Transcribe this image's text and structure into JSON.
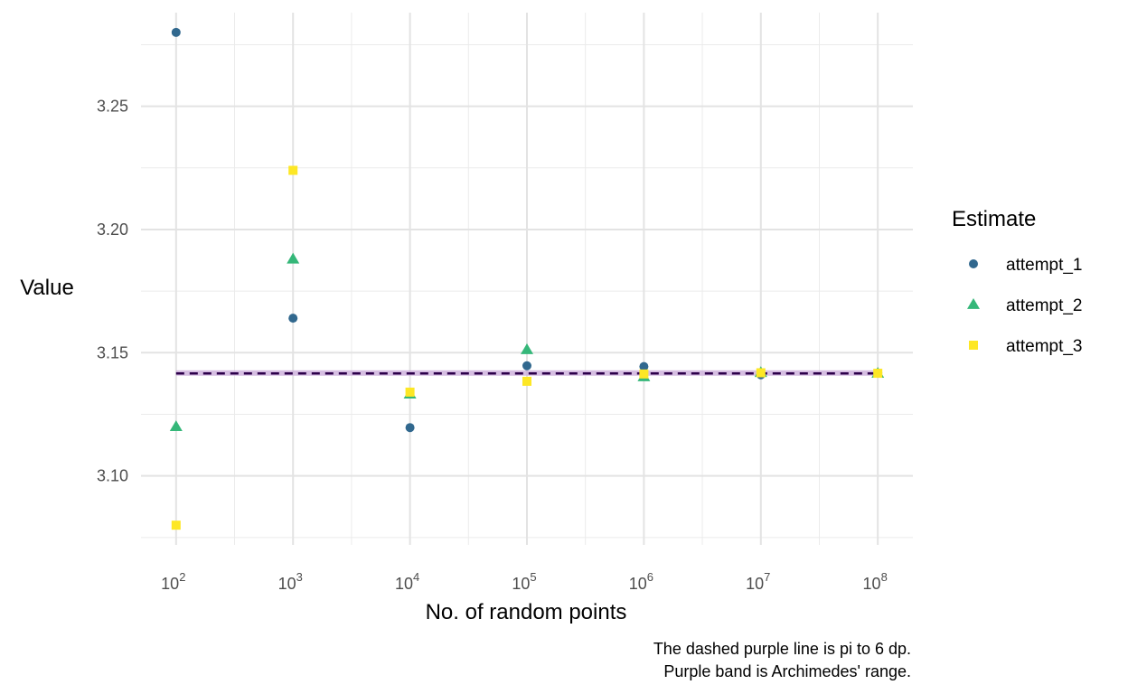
{
  "chart_data": {
    "type": "scatter",
    "xlabel": "No. of random points",
    "ylabel": "Value",
    "x_scale": "log10",
    "x_ticks": [
      {
        "value": 100,
        "base": "10",
        "exp": "2"
      },
      {
        "value": 1000,
        "base": "10",
        "exp": "3"
      },
      {
        "value": 10000,
        "base": "10",
        "exp": "4"
      },
      {
        "value": 100000,
        "base": "10",
        "exp": "5"
      },
      {
        "value": 1000000,
        "base": "10",
        "exp": "6"
      },
      {
        "value": 10000000,
        "base": "10",
        "exp": "7"
      },
      {
        "value": 100000000,
        "base": "10",
        "exp": "8"
      }
    ],
    "y_ticks": [
      "3.10",
      "3.15",
      "3.20",
      "3.25"
    ],
    "ylim": [
      3.072,
      3.288
    ],
    "grid": true,
    "legend": {
      "title": "Estimate",
      "placement": "right"
    },
    "x": [
      100,
      1000,
      10000,
      100000,
      1000000,
      10000000,
      100000000
    ],
    "series": [
      {
        "name": "attempt_1",
        "shape": "circle",
        "color": "#31688e",
        "values": [
          3.28,
          3.164,
          3.1196,
          3.1447,
          3.14436,
          3.14105,
          3.14178
        ]
      },
      {
        "name": "attempt_2",
        "shape": "triangle",
        "color": "#35b779",
        "values": [
          3.12,
          3.188,
          3.1332,
          3.1512,
          3.1402,
          3.14196,
          3.14162
        ]
      },
      {
        "name": "attempt_3",
        "shape": "square",
        "color": "#fde725",
        "values": [
          3.08,
          3.224,
          3.134,
          3.1384,
          3.14136,
          3.14186,
          3.14165
        ]
      }
    ],
    "reference_line": {
      "value": 3.141593,
      "style": "dashed",
      "color": "#2d004b"
    },
    "reference_band": {
      "min": 3.140845,
      "max": 3.142857,
      "color": "#c8a8d8"
    },
    "caption": [
      "The dashed purple line is pi to 6 dp.",
      "Purple band is Archimedes' range."
    ]
  }
}
